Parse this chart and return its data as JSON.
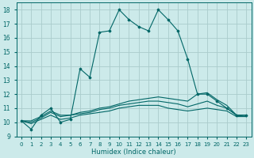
{
  "xlabel": "Humidex (Indice chaleur)",
  "bg_color": "#cceaea",
  "grid_color": "#aacccc",
  "line_color": "#006666",
  "xlim": [
    -0.5,
    23.5
  ],
  "ylim": [
    9,
    18.5
  ],
  "xticks": [
    0,
    1,
    2,
    3,
    4,
    5,
    6,
    7,
    8,
    9,
    10,
    11,
    12,
    13,
    14,
    15,
    16,
    17,
    18,
    19,
    20,
    21,
    22,
    23
  ],
  "yticks": [
    9,
    10,
    11,
    12,
    13,
    14,
    15,
    16,
    17,
    18
  ],
  "series": [
    {
      "x": [
        0,
        1,
        2,
        3,
        4,
        5,
        6,
        7,
        8,
        9,
        10,
        11,
        12,
        13,
        14,
        15,
        16,
        17,
        18,
        19,
        20,
        21,
        22,
        23
      ],
      "y": [
        10.1,
        9.5,
        10.5,
        11.0,
        10.0,
        10.2,
        13.8,
        13.2,
        16.4,
        16.5,
        18.0,
        17.3,
        16.8,
        16.5,
        18.0,
        17.3,
        16.5,
        14.5,
        12.0,
        12.0,
        11.5,
        11.0,
        10.5,
        10.5
      ],
      "marker": true
    },
    {
      "x": [
        0,
        1,
        2,
        3,
        4,
        5,
        6,
        7,
        8,
        9,
        10,
        11,
        12,
        13,
        14,
        15,
        16,
        17,
        18,
        19,
        20,
        21,
        22,
        23
      ],
      "y": [
        10.1,
        10.1,
        10.4,
        10.8,
        10.5,
        10.5,
        10.7,
        10.8,
        11.0,
        11.1,
        11.3,
        11.5,
        11.6,
        11.7,
        11.8,
        11.7,
        11.6,
        11.5,
        12.0,
        12.1,
        11.6,
        11.2,
        10.5,
        10.5
      ],
      "marker": false
    },
    {
      "x": [
        0,
        1,
        2,
        3,
        4,
        5,
        6,
        7,
        8,
        9,
        10,
        11,
        12,
        13,
        14,
        15,
        16,
        17,
        18,
        19,
        20,
        21,
        22,
        23
      ],
      "y": [
        10.1,
        10.0,
        10.3,
        10.7,
        10.4,
        10.5,
        10.6,
        10.7,
        10.9,
        11.0,
        11.2,
        11.3,
        11.4,
        11.5,
        11.5,
        11.4,
        11.3,
        11.1,
        11.3,
        11.5,
        11.2,
        11.0,
        10.5,
        10.4
      ],
      "marker": false
    },
    {
      "x": [
        0,
        1,
        2,
        3,
        4,
        5,
        6,
        7,
        8,
        9,
        10,
        11,
        12,
        13,
        14,
        15,
        16,
        17,
        18,
        19,
        20,
        21,
        22,
        23
      ],
      "y": [
        10.1,
        9.9,
        10.2,
        10.5,
        10.2,
        10.3,
        10.5,
        10.6,
        10.7,
        10.8,
        11.0,
        11.1,
        11.2,
        11.2,
        11.2,
        11.0,
        10.9,
        10.8,
        10.9,
        11.0,
        10.9,
        10.8,
        10.4,
        10.4
      ],
      "marker": false
    }
  ]
}
